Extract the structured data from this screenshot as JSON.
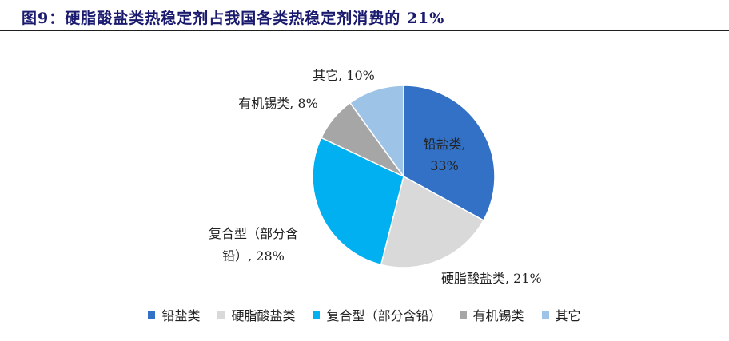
{
  "title": "图9：硬脂酸盐类热稳定剂占我国各类热稳定剂消费的 21%",
  "chart_data": {
    "type": "pie",
    "title": "图9：硬脂酸盐类热稳定剂占我国各类热稳定剂消费的 21%",
    "start_angle_deg": 0,
    "direction": "clockwise",
    "legend_position": "bottom",
    "slices": [
      {
        "label": "铅盐类",
        "value": 33,
        "value_label": "33%",
        "color": "#3271C6"
      },
      {
        "label": "硬脂酸盐类",
        "value": 21,
        "value_label": "21%",
        "color": "#D9D9D9"
      },
      {
        "label": "复合型（部分含铅）",
        "value": 28,
        "value_label": "28%",
        "color": "#00B0F0"
      },
      {
        "label": "有机锡类",
        "value": 8,
        "value_label": "8%",
        "color": "#A6A6A6"
      },
      {
        "label": "其它",
        "value": 10,
        "value_label": "10%",
        "color": "#9DC3E6"
      }
    ],
    "data_labels": [
      {
        "lines": [
          "铅盐类,",
          "33%"
        ]
      },
      {
        "lines": [
          "硬脂酸盐类, 21%"
        ]
      },
      {
        "lines": [
          "复合型（部分含",
          "铅）, 28%"
        ]
      },
      {
        "lines": [
          "有机锡类, 8%"
        ]
      },
      {
        "lines": [
          "其它, 10%"
        ]
      }
    ]
  }
}
